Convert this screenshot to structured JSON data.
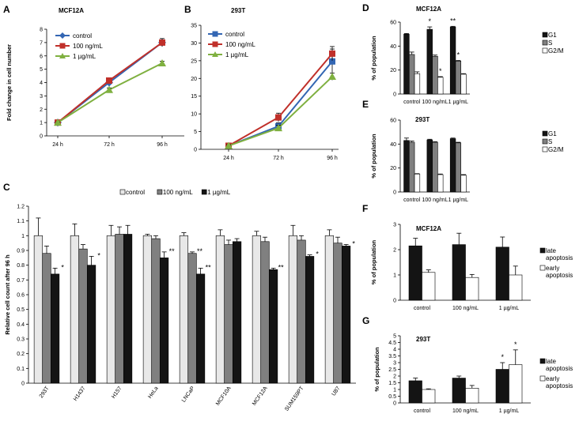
{
  "chart_data": [
    {
      "id": "A",
      "panel_label": "A",
      "type": "line",
      "title": "MCF12A",
      "ylabel": "Fold change in cell number",
      "xlabel": "",
      "categories": [
        "24 h",
        "72 h",
        "96 h"
      ],
      "ylim": [
        0,
        8
      ],
      "yticks": [
        0,
        1,
        2,
        3,
        4,
        5,
        6,
        7,
        8
      ],
      "legend": "top-left",
      "series": [
        {
          "name": "control",
          "color": "#3366b3",
          "marker": "diamond",
          "values": [
            1,
            4.0,
            7.0
          ],
          "errors": [
            0.05,
            0.3,
            0.2
          ]
        },
        {
          "name": "100 ng/mL",
          "color": "#c0302a",
          "marker": "square",
          "values": [
            1,
            4.15,
            7.0
          ],
          "errors": [
            0.05,
            0.2,
            0.3
          ]
        },
        {
          "name": "1 µg/mL",
          "color": "#7fb040",
          "marker": "triangle",
          "values": [
            1,
            3.45,
            5.45
          ],
          "errors": [
            0.05,
            0.15,
            0.15
          ]
        }
      ]
    },
    {
      "id": "B",
      "panel_label": "B",
      "type": "line",
      "title": "293T",
      "ylabel": "",
      "xlabel": "",
      "categories": [
        "24 h",
        "72 h",
        "96 h"
      ],
      "ylim": [
        0,
        35
      ],
      "yticks": [
        0,
        5,
        10,
        15,
        20,
        25,
        30,
        35
      ],
      "legend": "top-left",
      "series": [
        {
          "name": "control",
          "color": "#3366b3",
          "marker": "square",
          "values": [
            1,
            6.5,
            24.8
          ],
          "errors": [
            0.3,
            1.0,
            3.5
          ]
        },
        {
          "name": "100 ng/mL",
          "color": "#c0302a",
          "marker": "square",
          "values": [
            1,
            9.0,
            27.0
          ],
          "errors": [
            0.3,
            1.2,
            2.0
          ]
        },
        {
          "name": "1 µg/mL",
          "color": "#7fb040",
          "marker": "triangle",
          "values": [
            1,
            6.0,
            20.5
          ],
          "errors": [
            0.3,
            0.8,
            1.0
          ]
        }
      ]
    },
    {
      "id": "C",
      "panel_label": "C",
      "type": "bar",
      "title": "",
      "ylabel": "Relative cell count after 96 h",
      "xlabel": "",
      "categories": [
        "293T",
        "H1437",
        "H157",
        "HeLa",
        "LNCaP",
        "MCF10A",
        "MCF12A",
        "SUM159PT",
        "U87"
      ],
      "ylim": [
        0,
        1.2
      ],
      "yticks": [
        0,
        0.1,
        0.2,
        0.3,
        0.4,
        0.5,
        0.6,
        0.7,
        0.8,
        0.9,
        1,
        1.1,
        1.2
      ],
      "ytick_labels": [
        "0",
        "0.1",
        "0.2",
        "0.3",
        "0.4",
        "0.5",
        "0.6",
        "0.7",
        "0.8",
        "0.9",
        "1",
        "1.1",
        "1.2"
      ],
      "legend": "top",
      "series": [
        {
          "name": "control",
          "color": "#e8e8e8",
          "values": [
            1,
            1,
            1,
            1,
            1,
            1,
            1,
            1,
            1
          ],
          "errors": [
            0.12,
            0.08,
            0.07,
            0.01,
            0.02,
            0.04,
            0.03,
            0.07,
            0.04
          ]
        },
        {
          "name": "100 ng/mL",
          "color": "#808080",
          "values": [
            0.88,
            0.91,
            1.01,
            0.98,
            0.88,
            0.94,
            0.96,
            0.97,
            0.95
          ],
          "errors": [
            0.05,
            0.03,
            0.05,
            0.02,
            0.01,
            0.03,
            0.03,
            0.03,
            0.04
          ]
        },
        {
          "name": "1 µg/mL",
          "color": "#141414",
          "values": [
            0.74,
            0.8,
            1.01,
            0.85,
            0.74,
            0.96,
            0.77,
            0.86,
            0.93
          ],
          "errors": [
            0.04,
            0.06,
            0.06,
            0.04,
            0.04,
            0.02,
            0.01,
            0.01,
            0.01
          ]
        }
      ],
      "annotations": [
        {
          "category": 0,
          "series": 2,
          "text": "*"
        },
        {
          "category": 1,
          "series": 2,
          "text": "*"
        },
        {
          "category": 3,
          "series": 2,
          "text": "**"
        },
        {
          "category": 4,
          "series": 1,
          "text": "**"
        },
        {
          "category": 4,
          "series": 2,
          "text": "**"
        },
        {
          "category": 6,
          "series": 2,
          "text": "**"
        },
        {
          "category": 7,
          "series": 2,
          "text": "*"
        },
        {
          "category": 8,
          "series": 2,
          "text": "*"
        }
      ]
    },
    {
      "id": "D",
      "panel_label": "D",
      "type": "bar",
      "title": "MCF12A",
      "ylabel": "% of population",
      "xlabel": "",
      "categories": [
        "control",
        "100 ng/mL",
        "1 µg/mL"
      ],
      "ylim": [
        0,
        60
      ],
      "yticks": [
        0,
        20,
        40,
        60
      ],
      "legend": "right",
      "series": [
        {
          "name": "G1",
          "color": "#141414",
          "values": [
            50,
            54,
            56
          ],
          "errors": [
            0.5,
            2,
            0.5
          ]
        },
        {
          "name": "S",
          "color": "#808080",
          "values": [
            33,
            31.5,
            27.5
          ],
          "errors": [
            2,
            1,
            0.5
          ]
        },
        {
          "name": "G2/M",
          "color": "#ffffff",
          "values": [
            17,
            14,
            16.5
          ],
          "errors": [
            1.5,
            0.5,
            0.5
          ]
        }
      ],
      "annotations": [
        {
          "category": 1,
          "series": 0,
          "text": "*"
        },
        {
          "category": 1,
          "series": 2,
          "text": "*"
        },
        {
          "category": 2,
          "series": 0,
          "text": "**"
        },
        {
          "category": 2,
          "series": 1,
          "text": "*"
        }
      ]
    },
    {
      "id": "E",
      "panel_label": "E",
      "type": "bar",
      "title": "293T",
      "ylabel": "% of population",
      "xlabel": "",
      "categories": [
        "control",
        "100 ng/mL",
        "1 µg/mL"
      ],
      "ylim": [
        0,
        60
      ],
      "yticks": [
        0,
        20,
        40,
        60
      ],
      "legend": "right",
      "series": [
        {
          "name": "G1",
          "color": "#141414",
          "values": [
            43,
            43.5,
            44.5
          ],
          "errors": [
            2,
            0.5,
            0.5
          ]
        },
        {
          "name": "S",
          "color": "#808080",
          "values": [
            41.5,
            41.5,
            41
          ],
          "errors": [
            1,
            0.5,
            0.5
          ]
        },
        {
          "name": "G2/M",
          "color": "#ffffff",
          "values": [
            15,
            14.5,
            14
          ],
          "errors": [
            0.3,
            0.5,
            0.5
          ]
        }
      ],
      "annotations": []
    },
    {
      "id": "F",
      "panel_label": "F",
      "type": "bar",
      "title": "MCF12A",
      "ylabel": "% of population",
      "xlabel": "",
      "categories": [
        "control",
        "100 ng/mL",
        "1 µg/mL"
      ],
      "ylim": [
        0,
        3
      ],
      "yticks": [
        0,
        1,
        2,
        3
      ],
      "legend": "right",
      "series": [
        {
          "name": "late apoptosis",
          "legend_lines": [
            "late",
            "apoptosis"
          ],
          "color": "#141414",
          "values": [
            2.15,
            2.2,
            2.1
          ],
          "errors": [
            0.3,
            0.45,
            0.4
          ]
        },
        {
          "name": "early apoptosis",
          "legend_lines": [
            "early",
            "apoptosis"
          ],
          "color": "#ffffff",
          "values": [
            1.1,
            0.9,
            1.0
          ],
          "errors": [
            0.1,
            0.12,
            0.35
          ]
        }
      ],
      "annotations": []
    },
    {
      "id": "G",
      "panel_label": "G",
      "type": "bar",
      "title": "293T",
      "ylabel": "% of population",
      "xlabel": "",
      "categories": [
        "control",
        "100 ng/mL",
        "1 µg/mL"
      ],
      "ylim": [
        0,
        5
      ],
      "yticks": [
        0,
        0.5,
        1,
        1.5,
        2,
        2.5,
        3,
        3.5,
        4,
        4.5,
        5
      ],
      "ytick_labels": [
        "0",
        "0.5",
        "1",
        "1.5",
        "2",
        "2.5",
        "3",
        "3.5",
        "4",
        "4.5",
        "5"
      ],
      "legend": "right",
      "series": [
        {
          "name": "late apoptosis",
          "legend_lines": [
            "late",
            "apoptosis"
          ],
          "color": "#141414",
          "values": [
            1.65,
            1.85,
            2.5
          ],
          "errors": [
            0.2,
            0.15,
            0.5
          ]
        },
        {
          "name": "early apoptosis",
          "legend_lines": [
            "early",
            "apoptosis"
          ],
          "color": "#ffffff",
          "values": [
            1.0,
            1.1,
            2.85
          ],
          "errors": [
            0.05,
            0.2,
            1.1
          ]
        }
      ],
      "annotations": [
        {
          "category": 2,
          "series": 0,
          "text": "*"
        },
        {
          "category": 2,
          "series": 1,
          "text": "*"
        }
      ]
    }
  ]
}
